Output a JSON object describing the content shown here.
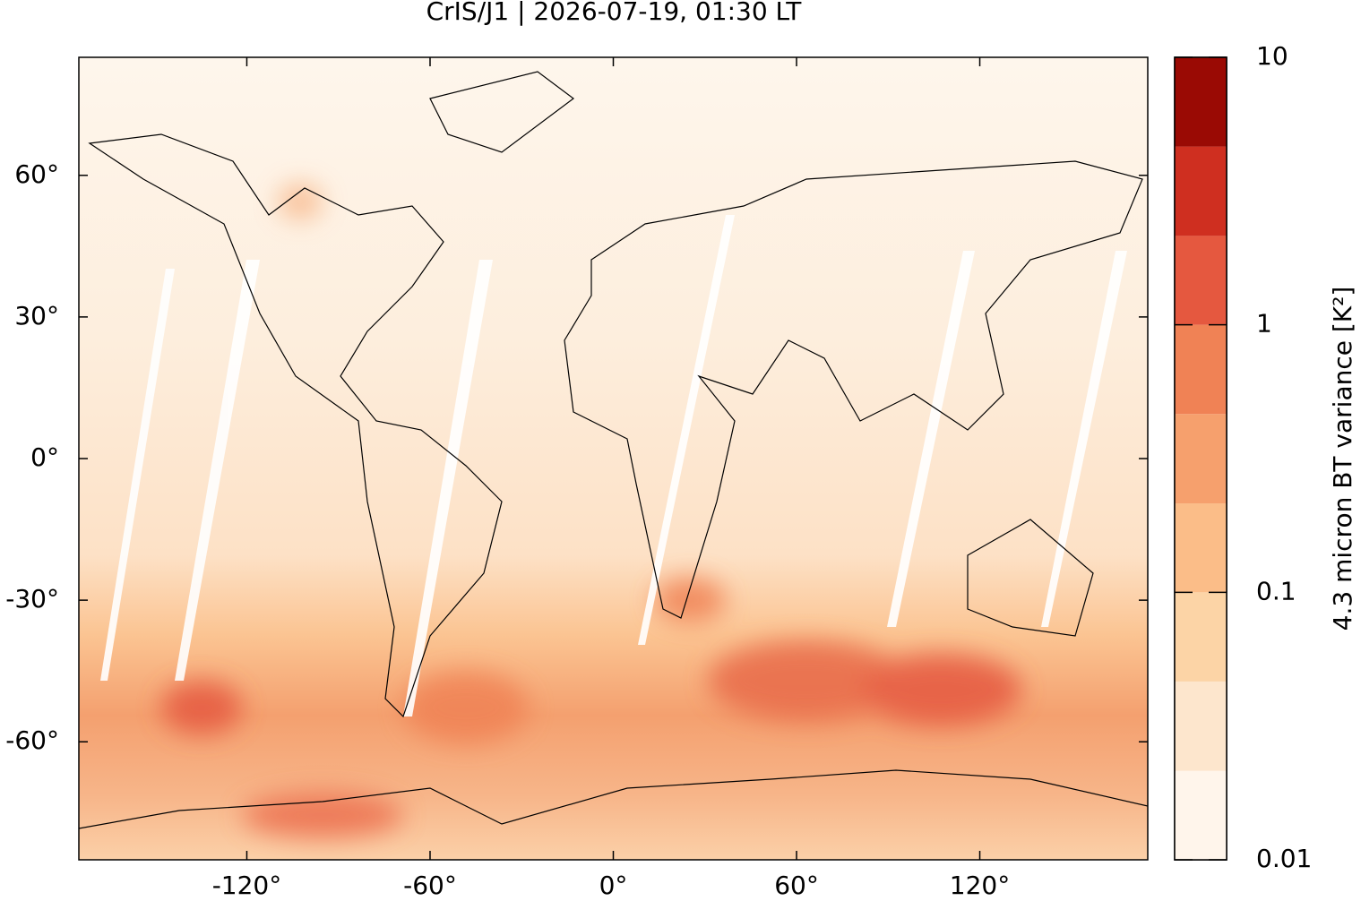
{
  "chart_data": {
    "type": "map",
    "title": "CrIS/J1 | 2026-07-19, 01:30 LT",
    "xlim": [
      -175,
      175
    ],
    "xticks": [
      {
        "value": -120,
        "label": "-120°"
      },
      {
        "value": -60,
        "label": "-60°"
      },
      {
        "value": 0,
        "label": "0°"
      },
      {
        "value": 60,
        "label": "60°"
      },
      {
        "value": 120,
        "label": "120°"
      }
    ],
    "ylim": [
      -85,
      85
    ],
    "yticks": [
      {
        "value": -60,
        "label": "-60°"
      },
      {
        "value": -30,
        "label": "-30°"
      },
      {
        "value": 0,
        "label": "0°"
      },
      {
        "value": 30,
        "label": "30°"
      },
      {
        "value": 60,
        "label": "60°"
      }
    ],
    "colorbar": {
      "label": "4.3 micron BT variance [K²]",
      "log": true,
      "lim": [
        0.01,
        10
      ],
      "ticks": [
        0.01,
        0.1,
        1,
        10
      ],
      "levels": [
        0.01,
        0.0215,
        0.0464,
        0.1,
        0.215,
        0.464,
        1,
        2.15,
        4.64,
        10
      ],
      "colors": [
        "#fff5eb",
        "#fde6cd",
        "#fcd4a6",
        "#fbbd88",
        "#f6a06d",
        "#f08255",
        "#e5583f",
        "#cf2f20",
        "#9a0a04"
      ]
    }
  }
}
